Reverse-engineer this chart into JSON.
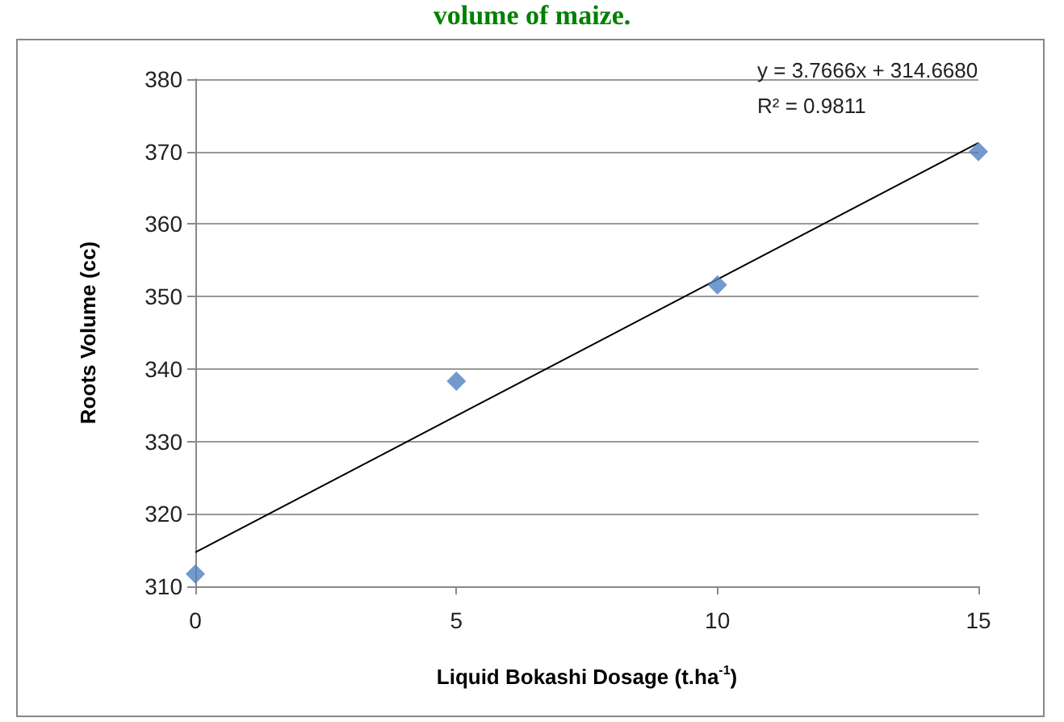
{
  "chart_data": {
    "type": "scatter",
    "title": "volume of maize.",
    "xlabel": "Liquid Bokashi Dosage (t.ha$^{-1}$)",
    "ylabel": "Roots Volume (cc)",
    "x": [
      0,
      5,
      10,
      15
    ],
    "series": [
      {
        "color": "#4f81bd",
        "values": [
          311.7,
          338.3,
          351.6,
          370.0
        ],
        "marker": "diamond"
      },
      {
        "type": "line",
        "color": "#000000",
        "x": [
          0,
          15
        ],
        "values": [
          314.7,
          371.2
        ],
        "marker": "none"
      }
    ],
    "xlim": [
      0,
      15
    ],
    "xticks": [
      0,
      5,
      10,
      15
    ],
    "ylim": [
      310,
      380
    ],
    "yticks": [
      310,
      320,
      330,
      340,
      350,
      360,
      370,
      380
    ],
    "grid": "y",
    "annotations": [
      "y = 3.7666x + 314.6680",
      "R² = 0.9811"
    ]
  }
}
